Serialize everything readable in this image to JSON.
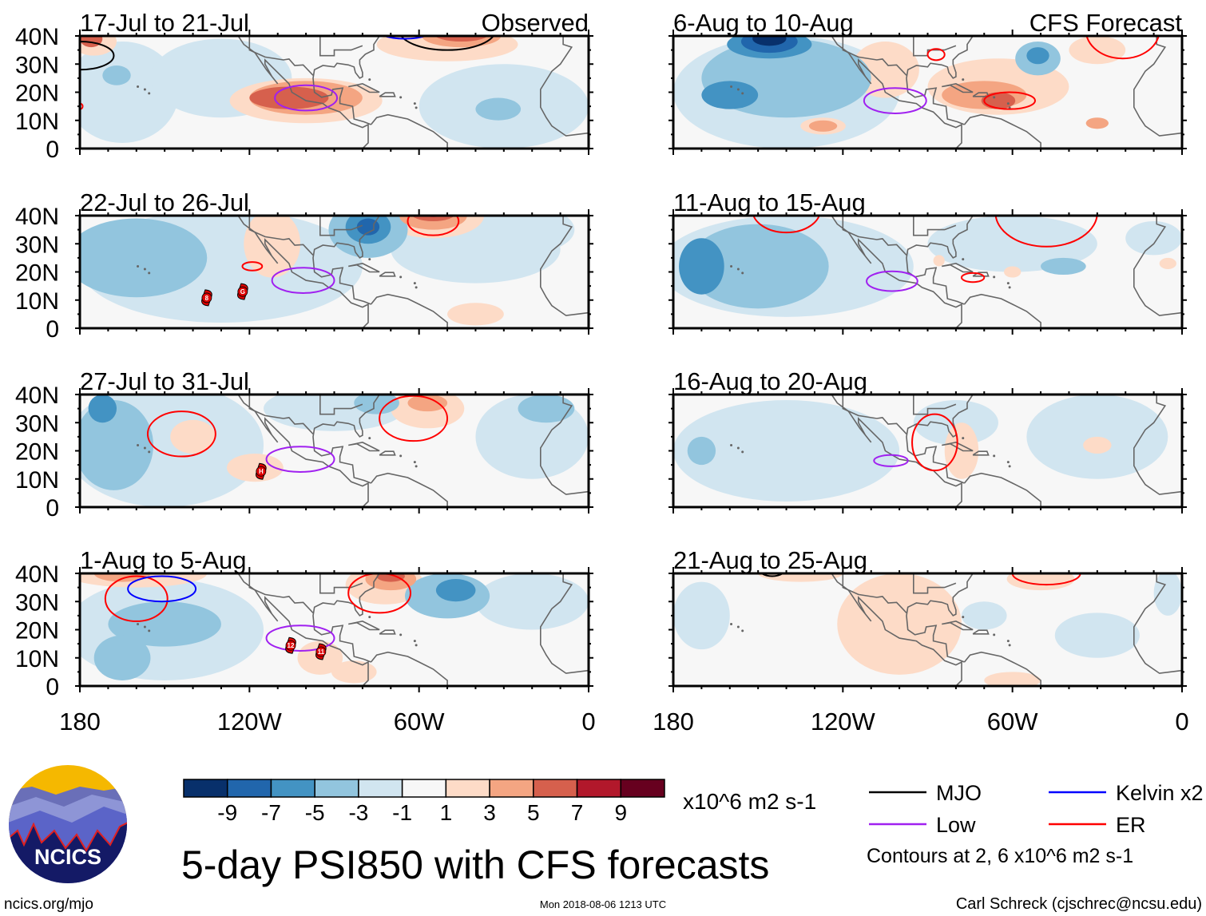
{
  "figure": {
    "title": "5-day PSI850 with CFS forecasts",
    "observed_label": "Observed",
    "forecast_label": "CFS Forecast",
    "units": "x10^6 m2 s-1",
    "contour_note": "Contours at 2, 6 x10^6 m2 s-1",
    "source": "ncics.org/mjo",
    "timestamp": "Mon 2018-08-06 1213 UTC",
    "author": "Carl Schreck (cjschrec@ncsu.edu)",
    "logo_text": "NCICS"
  },
  "axes": {
    "lat_labels": [
      "40N",
      "30N",
      "20N",
      "10N",
      "0"
    ],
    "lat_values": [
      40,
      30,
      20,
      10,
      0
    ],
    "lon_labels": [
      "180",
      "120W",
      "60W",
      "0"
    ],
    "lon_values": [
      -180,
      -120,
      -60,
      0
    ]
  },
  "colorbar": {
    "labels": [
      "-9",
      "-7",
      "-5",
      "-3",
      "-1",
      "1",
      "3",
      "5",
      "7",
      "9"
    ],
    "colors": [
      "#08306b",
      "#2166ac",
      "#4393c3",
      "#92c5de",
      "#d1e5f0",
      "#f7f7f7",
      "#fddbc7",
      "#f4a582",
      "#d6604d",
      "#b2182b",
      "#67001f"
    ]
  },
  "legend": [
    {
      "key": "mjo",
      "label": "MJO",
      "color": "#000000"
    },
    {
      "key": "kelvin",
      "label": "Kelvin x2",
      "color": "#0000ff"
    },
    {
      "key": "low",
      "label": "Low",
      "color": "#a020f0"
    },
    {
      "key": "er",
      "label": "ER",
      "color": "#ff0000"
    }
  ],
  "chart_data": {
    "type": "map-panels",
    "variable": "5-day PSI850 anomaly",
    "units": "x10^6 m2 s-1",
    "lon_range": [
      -180,
      0
    ],
    "lat_range": [
      0,
      40
    ],
    "field_format": "[lon, lat, lon_radius_deg, lat_radius_deg, value]",
    "contour_format": "[wave_type, lon, lat, lon_radius_deg, lat_radius_deg]",
    "storm_format": "[label, lon, lat]",
    "panels": [
      {
        "period": "17-Jul to 21-Jul",
        "kind": "observed",
        "fields": [
          [
            -165,
            20,
            20,
            18,
            -2
          ],
          [
            -130,
            25,
            25,
            14,
            -2
          ],
          [
            -30,
            15,
            30,
            15,
            -2
          ],
          [
            -167,
            26,
            5,
            3.5,
            -4
          ],
          [
            -32,
            14,
            8,
            4,
            -4
          ],
          [
            -100,
            17,
            27,
            8,
            2
          ],
          [
            -50,
            37,
            25,
            6,
            2
          ],
          [
            -175,
            38,
            8,
            5,
            2
          ],
          [
            -100,
            18,
            20,
            6,
            4
          ],
          [
            -45,
            40,
            14,
            4,
            4
          ],
          [
            -106,
            18,
            14,
            4,
            6
          ],
          [
            -45,
            41,
            10,
            3,
            6
          ],
          [
            -176,
            39,
            4,
            3,
            6
          ]
        ],
        "contours": [
          [
            "low",
            -100,
            18,
            11,
            4.5
          ],
          [
            "mjo",
            -50,
            42,
            17,
            7
          ],
          [
            "kelvin",
            -65,
            44,
            12,
            5
          ],
          [
            "mjo",
            -180,
            33,
            12,
            5
          ],
          [
            "er",
            -180,
            15,
            1,
            1
          ]
        ],
        "storms": []
      },
      {
        "period": "22-Jul to 26-Jul",
        "kind": "observed",
        "fields": [
          [
            -130,
            22,
            50,
            20,
            -2
          ],
          [
            -40,
            28,
            30,
            12,
            -2
          ],
          [
            -20,
            35,
            15,
            8,
            -2
          ],
          [
            -160,
            25,
            25,
            14,
            -4
          ],
          [
            -78,
            35,
            14,
            10,
            -4
          ],
          [
            -78,
            36,
            8,
            6,
            -6
          ],
          [
            -78,
            36,
            4,
            3,
            -8
          ],
          [
            -112,
            30,
            10,
            12,
            2
          ],
          [
            -40,
            5,
            10,
            4,
            2
          ],
          [
            -55,
            40,
            18,
            8,
            2
          ],
          [
            -55,
            40,
            12,
            5,
            4
          ],
          [
            -55,
            41,
            8,
            3,
            6
          ],
          [
            -55,
            41.5,
            5,
            2,
            8
          ]
        ],
        "contours": [
          [
            "low",
            -101,
            17,
            11,
            4.5
          ],
          [
            "er",
            -55,
            38,
            9,
            5
          ],
          [
            "er",
            -119,
            22,
            3.5,
            1.5
          ]
        ],
        "storms": [
          [
            "8",
            -135.1,
            10.8
          ],
          [
            "G",
            -122.4,
            13.0
          ]
        ]
      },
      {
        "period": "27-Jul to 31-Jul",
        "kind": "observed",
        "fields": [
          [
            -150,
            22,
            35,
            22,
            -2
          ],
          [
            -90,
            35,
            25,
            8,
            -2
          ],
          [
            -20,
            25,
            20,
            15,
            -2
          ],
          [
            -168,
            22,
            14,
            16,
            -4
          ],
          [
            -75,
            37,
            8,
            4,
            -4
          ],
          [
            -15,
            35,
            10,
            5,
            -4
          ],
          [
            -172,
            35,
            5,
            5,
            -6
          ],
          [
            -57,
            35,
            13,
            7,
            2
          ],
          [
            -118,
            14,
            10,
            5,
            2
          ],
          [
            -140,
            25,
            8,
            6,
            2
          ],
          [
            -57,
            37,
            7,
            3,
            4
          ]
        ],
        "contours": [
          [
            "er",
            -144,
            26,
            12,
            8
          ],
          [
            "er",
            -62,
            31.5,
            12,
            8
          ],
          [
            "low",
            -102,
            17,
            12,
            4.5
          ]
        ],
        "storms": [
          [
            "H",
            -115.9,
            12.7
          ]
        ]
      },
      {
        "period": "1-Aug to 5-Aug",
        "kind": "observed",
        "fields": [
          [
            -150,
            20,
            35,
            18,
            -2
          ],
          [
            -20,
            30,
            20,
            10,
            -2
          ],
          [
            -150,
            22,
            20,
            8,
            -4
          ],
          [
            -165,
            10,
            10,
            8,
            -4
          ],
          [
            -50,
            32,
            15,
            8,
            -4
          ],
          [
            -47,
            34,
            7,
            4,
            -6
          ],
          [
            -160,
            40,
            25,
            5,
            2
          ],
          [
            -72,
            36,
            14,
            7,
            2
          ],
          [
            -95,
            10,
            8,
            6,
            2
          ],
          [
            -83,
            5,
            8,
            4,
            2
          ],
          [
            -165,
            40,
            10,
            3,
            4
          ],
          [
            -70,
            38,
            9,
            4,
            4
          ],
          [
            -70,
            39,
            5,
            2,
            6
          ]
        ],
        "contours": [
          [
            "er",
            -160,
            31,
            11,
            8
          ],
          [
            "kelvin",
            -151,
            34.5,
            12,
            4.5
          ],
          [
            "er",
            -74,
            33,
            11,
            7
          ],
          [
            "low",
            -102,
            17,
            12,
            4.5
          ]
        ],
        "storms": [
          [
            "12",
            -105.4,
            14.4
          ],
          [
            "11",
            -94.7,
            12.2
          ]
        ]
      },
      {
        "period": "6-Aug to 10-Aug",
        "kind": "forecast",
        "fields": [
          [
            -140,
            20,
            40,
            20,
            -2
          ],
          [
            -140,
            25,
            30,
            14,
            -4
          ],
          [
            -51,
            32,
            8,
            6,
            -4
          ],
          [
            -160,
            19,
            10,
            5,
            -6
          ],
          [
            -146,
            37,
            15,
            5,
            -6
          ],
          [
            -51,
            33,
            4,
            3,
            -6
          ],
          [
            -146,
            38,
            10,
            4,
            -8
          ],
          [
            -146,
            39,
            6,
            2.5,
            -10
          ],
          [
            -65,
            22,
            25,
            10,
            2
          ],
          [
            -105,
            28,
            12,
            10,
            2
          ],
          [
            -127,
            8,
            8,
            3,
            2
          ],
          [
            -30,
            35,
            10,
            5,
            2
          ],
          [
            -70,
            19,
            15,
            5,
            4
          ],
          [
            -127,
            8,
            5,
            2,
            4
          ],
          [
            -30,
            9,
            4,
            2,
            4
          ],
          [
            -65,
            17,
            6,
            3,
            6
          ]
        ],
        "contours": [
          [
            "er",
            -87,
            33.4,
            3,
            2
          ],
          [
            "er",
            -61,
            17,
            9,
            3
          ],
          [
            "low",
            -101.5,
            17,
            11,
            4.5
          ],
          [
            "er",
            -21,
            42,
            13,
            10
          ]
        ],
        "storms": []
      },
      {
        "period": "11-Aug to 15-Aug",
        "kind": "forecast",
        "fields": [
          [
            -140,
            22,
            45,
            18,
            -2
          ],
          [
            -60,
            30,
            30,
            10,
            -2
          ],
          [
            -10,
            32,
            10,
            6,
            -2
          ],
          [
            -150,
            22,
            25,
            15,
            -4
          ],
          [
            -42,
            22,
            8,
            3,
            -4
          ],
          [
            -170,
            22,
            8,
            10,
            -6
          ],
          [
            -86,
            24,
            2,
            2,
            2
          ],
          [
            -60,
            20,
            3,
            2,
            2
          ],
          [
            -5,
            23,
            3,
            2,
            2
          ]
        ],
        "contours": [
          [
            "er",
            -140,
            42,
            12,
            8
          ],
          [
            "er",
            -48,
            41,
            18,
            12
          ],
          [
            "er",
            -74,
            18,
            4,
            1.6
          ],
          [
            "low",
            -102.6,
            16.7,
            9,
            3.5
          ]
        ],
        "storms": []
      },
      {
        "period": "16-Aug to 20-Aug",
        "kind": "forecast",
        "fields": [
          [
            -140,
            20,
            40,
            18,
            -2
          ],
          [
            -30,
            25,
            25,
            15,
            -2
          ],
          [
            -80,
            30,
            15,
            8,
            -2
          ],
          [
            -170,
            20,
            5,
            5,
            -4
          ],
          [
            -78,
            20,
            6,
            10,
            2
          ],
          [
            -30,
            22,
            5,
            3,
            2
          ]
        ],
        "contours": [
          [
            "er",
            -87.5,
            23,
            8,
            10
          ],
          [
            "low",
            -103,
            16.5,
            6,
            2
          ]
        ],
        "storms": []
      },
      {
        "period": "21-Aug to 25-Aug",
        "kind": "forecast",
        "fields": [
          [
            -100,
            22,
            22,
            18,
            2
          ],
          [
            -135,
            40,
            15,
            3,
            2
          ],
          [
            -50,
            38,
            12,
            4,
            2
          ],
          [
            -60,
            2,
            10,
            3,
            2
          ],
          [
            -170,
            25,
            10,
            12,
            -2
          ],
          [
            -70,
            25,
            8,
            5,
            -2
          ],
          [
            -30,
            18,
            15,
            8,
            -2
          ],
          [
            -5,
            33,
            5,
            8,
            -2
          ]
        ],
        "contours": [
          [
            "mjo",
            -145,
            42,
            5,
            3
          ],
          [
            "er",
            -48,
            40,
            12,
            4
          ]
        ],
        "storms": []
      }
    ]
  }
}
